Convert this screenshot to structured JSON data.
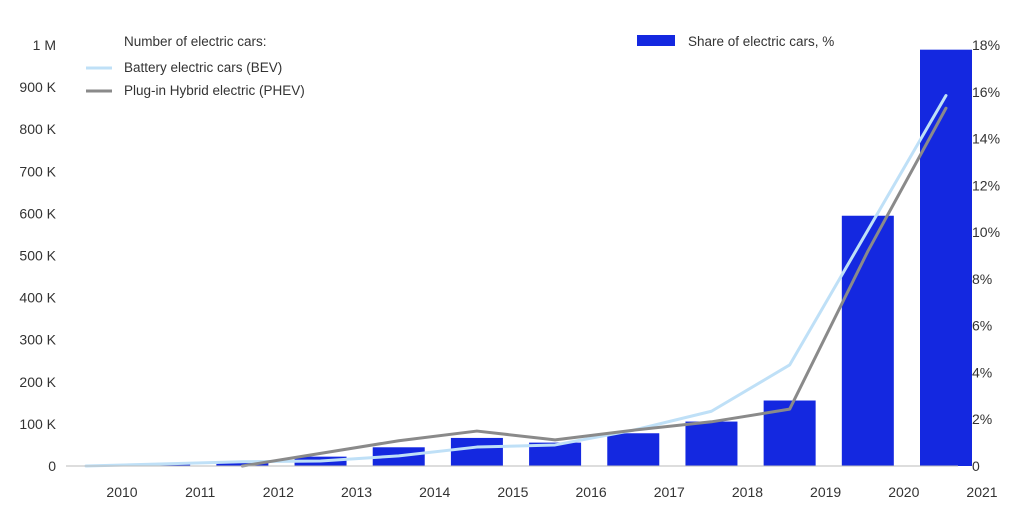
{
  "chart_data": {
    "type": "bar",
    "categories": [
      "2010",
      "2011",
      "2012",
      "2013",
      "2014",
      "2015",
      "2016",
      "2017",
      "2018",
      "2019",
      "2020",
      "2021"
    ],
    "bar_series": {
      "name": "Share of electric cars, %",
      "axis": "right",
      "values": [
        0.0,
        0.1,
        0.2,
        0.4,
        0.8,
        1.2,
        1.0,
        1.4,
        1.9,
        2.8,
        10.7,
        17.8
      ],
      "color": "#1428e0"
    },
    "line_series": [
      {
        "name": "Battery electric cars (BEV)",
        "axis": "left",
        "values": [
          0,
          5000,
          10000,
          12000,
          24000,
          45000,
          50000,
          85000,
          130000,
          240000,
          560000,
          880000
        ],
        "color": "#bfe0f7"
      },
      {
        "name": "Plug-in Hybrid electric (PHEV)",
        "axis": "left",
        "values": [
          null,
          null,
          0,
          30000,
          60000,
          83000,
          62000,
          85000,
          105000,
          135000,
          510000,
          850000
        ],
        "color": "#8a8a8a"
      }
    ],
    "legend_title": "Number of electric cars:",
    "y_left": {
      "ylim": [
        0,
        1000000
      ],
      "ticks": [
        0,
        100000,
        200000,
        300000,
        400000,
        500000,
        600000,
        700000,
        800000,
        900000,
        1000000
      ],
      "tick_labels": [
        "0",
        "100 K",
        "200 K",
        "300 K",
        "400 K",
        "500 K",
        "600 K",
        "700 K",
        "800 K",
        "900 K",
        "1 M"
      ]
    },
    "y_right": {
      "ylim": [
        0,
        18
      ],
      "ticks": [
        0,
        2,
        4,
        6,
        8,
        10,
        12,
        14,
        16,
        18
      ],
      "tick_labels": [
        "0",
        "2%",
        "4%",
        "6%",
        "8%",
        "10%",
        "12%",
        "14%",
        "16%",
        "18%"
      ]
    },
    "grid": false,
    "legend_position": "top-left"
  }
}
